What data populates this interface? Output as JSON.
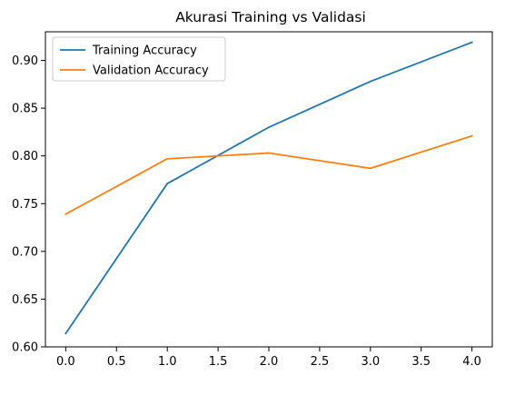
{
  "chart_data": {
    "type": "line",
    "title": "Akurasi Training vs Validasi",
    "xlabel": "",
    "ylabel": "",
    "x": [
      0,
      1,
      2,
      3,
      4
    ],
    "series": [
      {
        "name": "Training Accuracy",
        "color": "#1f77b4",
        "values": [
          0.614,
          0.771,
          0.83,
          0.878,
          0.919
        ]
      },
      {
        "name": "Validation Accuracy",
        "color": "#ff7f0e",
        "values": [
          0.739,
          0.797,
          0.803,
          0.787,
          0.821
        ]
      }
    ],
    "xlim": [
      -0.2,
      4.2
    ],
    "ylim": [
      0.6,
      0.93
    ],
    "xticks": [
      0.0,
      0.5,
      1.0,
      1.5,
      2.0,
      2.5,
      3.0,
      3.5,
      4.0
    ],
    "xtick_labels": [
      "0.0",
      "0.5",
      "1.0",
      "1.5",
      "2.0",
      "2.5",
      "3.0",
      "3.5",
      "4.0"
    ],
    "yticks": [
      0.6,
      0.65,
      0.7,
      0.75,
      0.8,
      0.85,
      0.9
    ],
    "ytick_labels": [
      "0.60",
      "0.65",
      "0.70",
      "0.75",
      "0.80",
      "0.85",
      "0.90"
    ],
    "grid": false,
    "legend_position": "upper-left"
  }
}
